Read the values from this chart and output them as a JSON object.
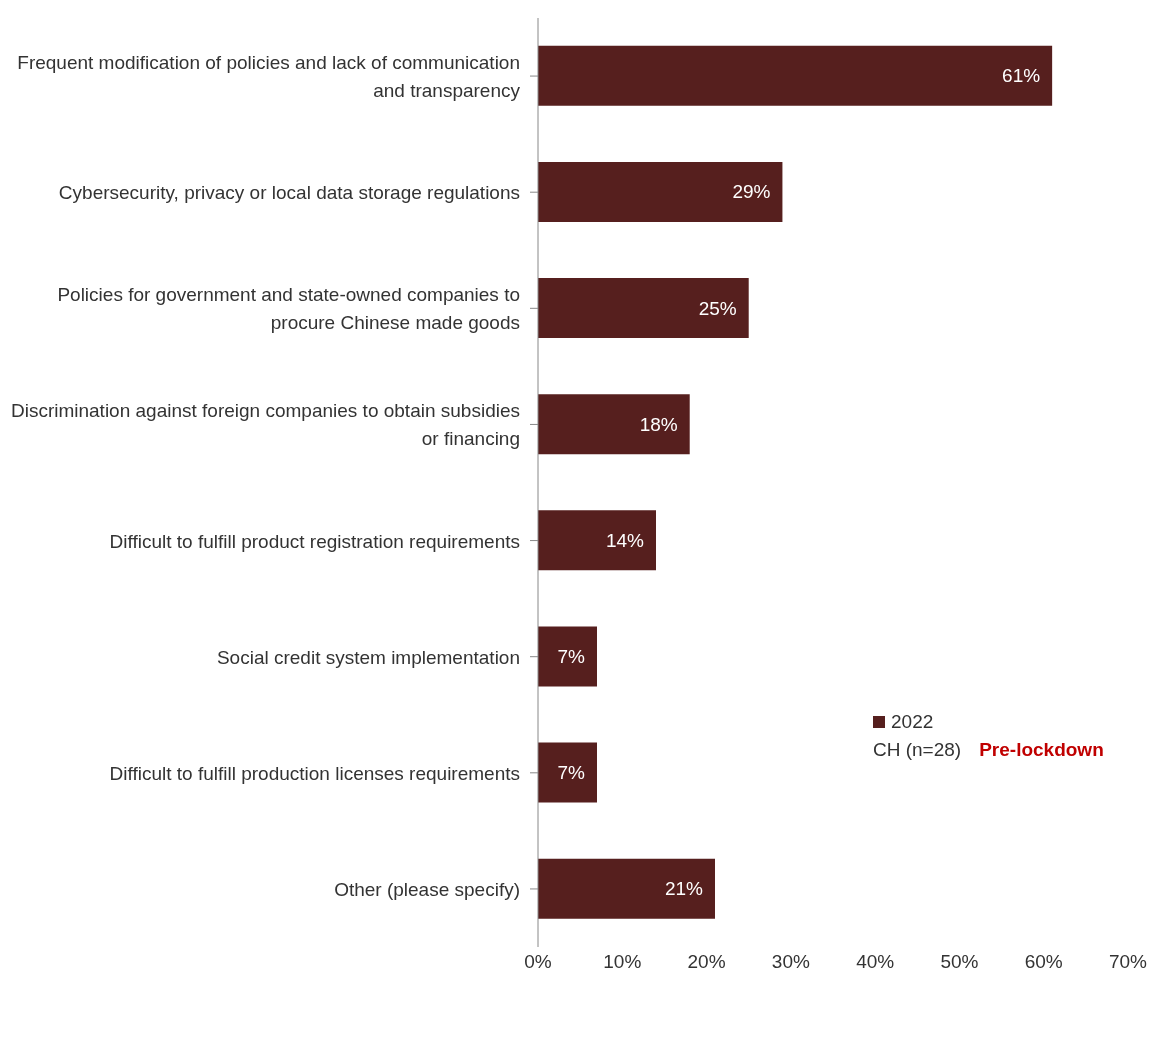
{
  "chart_data": {
    "type": "bar",
    "orientation": "horizontal",
    "categories": [
      "Frequent modification of policies and lack of communication and transparency",
      "Cybersecurity, privacy or local data storage regulations",
      "Policies for government and state-owned companies to procure Chinese made goods",
      "Discrimination against foreign companies to obtain subsidies or financing",
      "Difficult to fulfill product registration requirements",
      "Social credit system implementation",
      "Difficult to fulfill production licenses requirements",
      "Other (please specify)"
    ],
    "series": [
      {
        "name": "2022",
        "color": "#561f1e",
        "values": [
          61,
          29,
          25,
          18,
          14,
          7,
          7,
          21
        ],
        "value_labels": [
          "61%",
          "29%",
          "25%",
          "18%",
          "14%",
          "7%",
          "7%",
          "21%"
        ]
      }
    ],
    "xlim": [
      0,
      70
    ],
    "xticks": [
      {
        "value": 0,
        "label": "0%"
      },
      {
        "value": 10,
        "label": "10%"
      },
      {
        "value": 20,
        "label": "20%"
      },
      {
        "value": 30,
        "label": "30%"
      },
      {
        "value": 40,
        "label": "40%"
      },
      {
        "value": 50,
        "label": "50%"
      },
      {
        "value": 60,
        "label": "60%"
      },
      {
        "value": 70,
        "label": "70%"
      }
    ],
    "grid": false,
    "legend": "right",
    "annotations": [
      "CH (n=28)",
      "Pre-lockdown"
    ]
  }
}
